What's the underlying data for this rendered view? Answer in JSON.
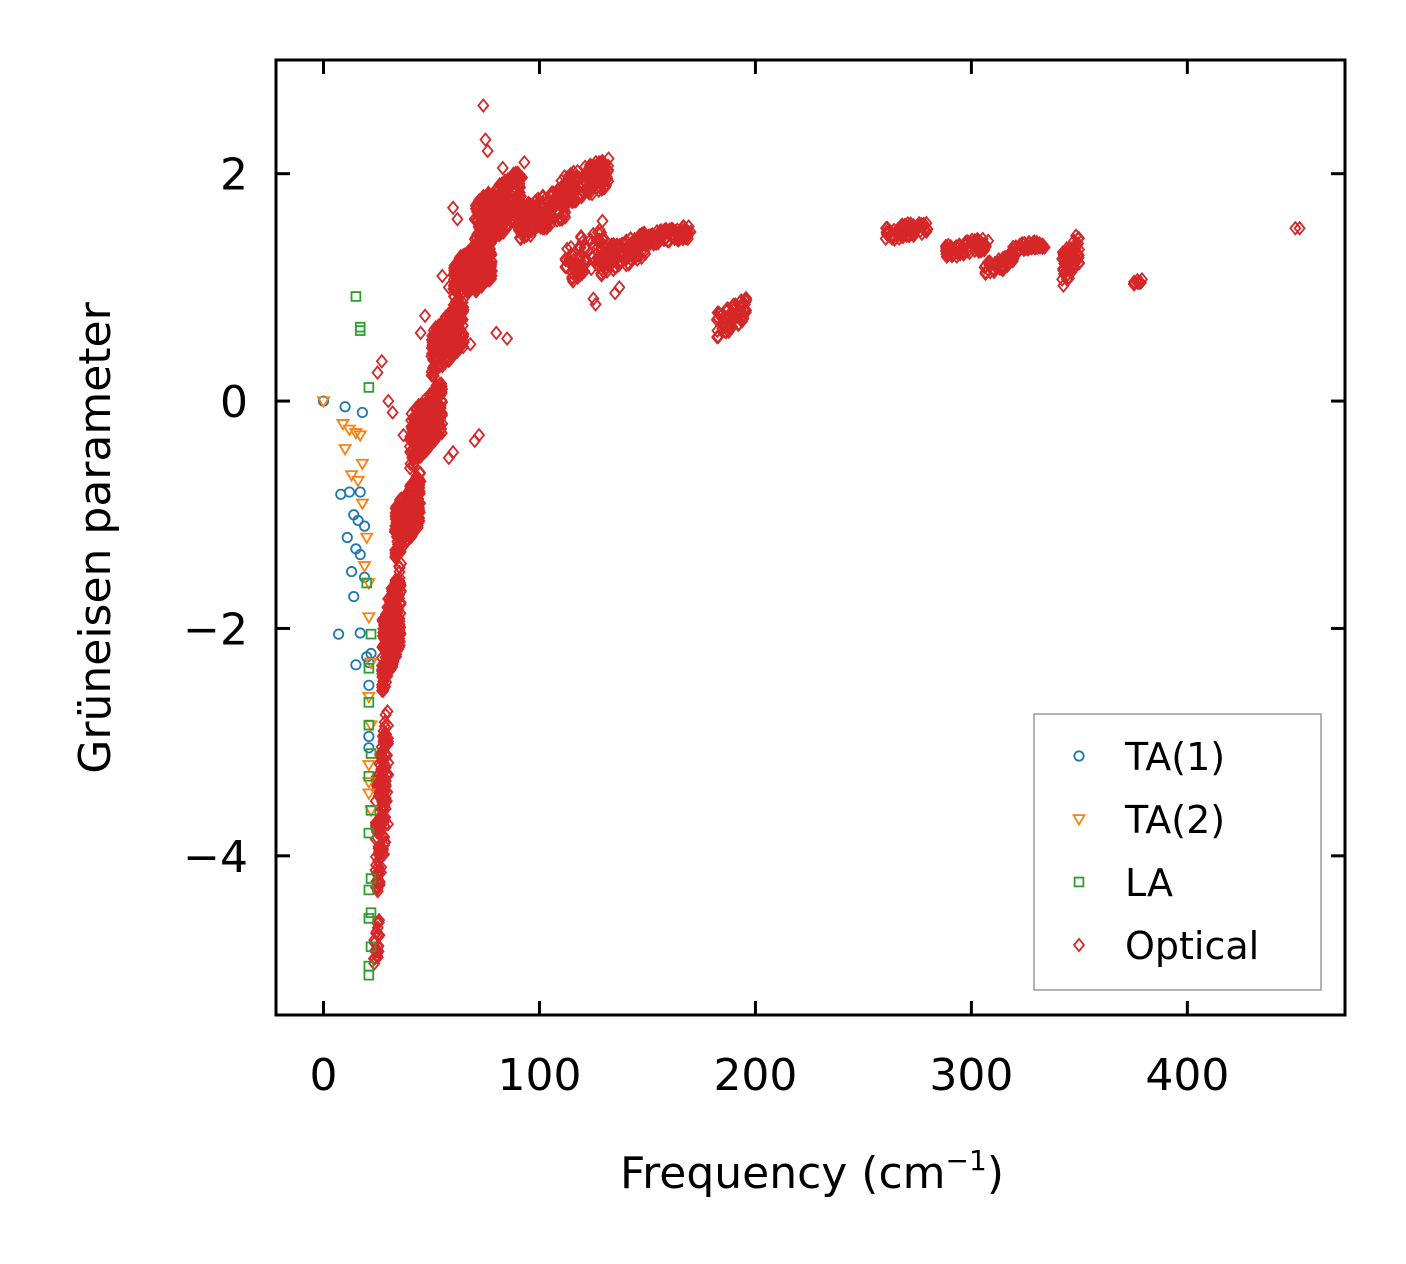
{
  "chart_data": {
    "type": "scatter",
    "title": "",
    "xlabel": "Frequency (cm",
    "xlabel_sup": "−1",
    "xlabel_end": ")",
    "ylabel": "Grüneisen parameter",
    "xlim": [
      -22,
      473
    ],
    "ylim": [
      -5.4,
      3.0
    ],
    "xticks": [
      0,
      100,
      200,
      300,
      400
    ],
    "xtick_labels": [
      "0",
      "100",
      "200",
      "300",
      "400"
    ],
    "yticks": [
      2,
      0,
      -2,
      -4
    ],
    "ytick_labels": [
      "2",
      "0",
      "−2",
      "−4"
    ],
    "grid": false,
    "legend_position": "lower-right",
    "series": [
      {
        "name": "TA(1)",
        "marker": "circle",
        "color": "#1f77b4",
        "points": [
          [
            0,
            0
          ],
          [
            10,
            -0.05
          ],
          [
            18,
            -0.1
          ],
          [
            8,
            -0.82
          ],
          [
            12,
            -0.8
          ],
          [
            17,
            -0.8
          ],
          [
            14,
            -1.0
          ],
          [
            16,
            -1.05
          ],
          [
            19,
            -1.1
          ],
          [
            11,
            -1.2
          ],
          [
            15,
            -1.3
          ],
          [
            17,
            -1.35
          ],
          [
            13,
            -1.5
          ],
          [
            19,
            -1.55
          ],
          [
            14,
            -1.72
          ],
          [
            7,
            -2.05
          ],
          [
            17,
            -2.04
          ],
          [
            15,
            -2.32
          ],
          [
            20,
            -2.25
          ],
          [
            21,
            -2.3
          ],
          [
            22,
            -2.22
          ],
          [
            21,
            -2.5
          ],
          [
            21,
            -2.95
          ],
          [
            21,
            -3.05
          ]
        ]
      },
      {
        "name": "TA(2)",
        "marker": "triangle-down",
        "color": "#ff7f0e",
        "points": [
          [
            0,
            0
          ],
          [
            9,
            -0.2
          ],
          [
            12,
            -0.25
          ],
          [
            15,
            -0.28
          ],
          [
            17,
            -0.3
          ],
          [
            10,
            -0.42
          ],
          [
            18,
            -0.55
          ],
          [
            13,
            -0.65
          ],
          [
            16,
            -0.7
          ],
          [
            18,
            -0.9
          ],
          [
            20,
            -1.2
          ],
          [
            19,
            -1.45
          ],
          [
            21,
            -1.6
          ],
          [
            21,
            -1.9
          ],
          [
            22,
            -2.3
          ],
          [
            21,
            -2.6
          ],
          [
            22,
            -2.85
          ],
          [
            21,
            -3.2
          ],
          [
            21,
            -3.35
          ],
          [
            21,
            -3.45
          ],
          [
            22,
            -3.6
          ]
        ]
      },
      {
        "name": "LA",
        "marker": "square",
        "color": "#2ca02c",
        "points": [
          [
            15,
            0.92
          ],
          [
            17,
            0.65
          ],
          [
            17,
            0.62
          ],
          [
            21,
            0.12
          ],
          [
            20,
            -1.6
          ],
          [
            22,
            -2.05
          ],
          [
            21,
            -2.35
          ],
          [
            21,
            -2.65
          ],
          [
            21,
            -2.85
          ],
          [
            22,
            -3.1
          ],
          [
            21,
            -3.3
          ],
          [
            22,
            -3.6
          ],
          [
            21,
            -3.8
          ],
          [
            22,
            -4.2
          ],
          [
            21,
            -4.3
          ],
          [
            22,
            -4.5
          ],
          [
            21,
            -4.55
          ],
          [
            22,
            -4.8
          ],
          [
            21,
            -4.97
          ],
          [
            21,
            -5.05
          ]
        ]
      },
      {
        "name": "Optical",
        "marker": "diamond",
        "color": "#d62728",
        "clusters": [
          {
            "x_range": [
              23,
              26
            ],
            "y_range": [
              -5.1,
              -4.5
            ],
            "count": 24
          },
          {
            "x_range": [
              24,
              30
            ],
            "y_range": [
              -4.5,
              -2.6
            ],
            "count": 160
          },
          {
            "x_range": [
              27,
              36
            ],
            "y_range": [
              -2.6,
              -1.4
            ],
            "count": 220
          },
          {
            "x_range": [
              33,
              45
            ],
            "y_range": [
              -1.4,
              -0.6
            ],
            "count": 240
          },
          {
            "x_range": [
              40,
              55
            ],
            "y_range": [
              -0.6,
              0.2
            ],
            "count": 260
          },
          {
            "x_range": [
              50,
              65
            ],
            "y_range": [
              0.2,
              0.9
            ],
            "count": 260
          },
          {
            "x_range": [
              60,
              78
            ],
            "y_range": [
              0.8,
              1.5
            ],
            "count": 280
          },
          {
            "x_range": [
              70,
              92
            ],
            "y_range": [
              1.3,
              2.05
            ],
            "count": 280
          },
          {
            "x_range": [
              90,
              112
            ],
            "y_range": [
              1.4,
              1.9
            ],
            "count": 200
          },
          {
            "x_range": [
              110,
              132
            ],
            "y_range": [
              1.7,
              2.15
            ],
            "count": 170
          },
          {
            "x_range": [
              112,
              130
            ],
            "y_range": [
              1.0,
              1.6
            ],
            "count": 70
          },
          {
            "x_range": [
              128,
              150
            ],
            "y_range": [
              1.1,
              1.5
            ],
            "count": 110
          },
          {
            "x_range": [
              145,
              170
            ],
            "y_range": [
              1.35,
              1.55
            ],
            "count": 110
          },
          {
            "x_range": [
              182,
              196
            ],
            "y_range": [
              0.55,
              0.92
            ],
            "count": 70
          },
          {
            "x_range": [
              260,
              280
            ],
            "y_range": [
              1.4,
              1.6
            ],
            "count": 70
          },
          {
            "x_range": [
              288,
              308
            ],
            "y_range": [
              1.25,
              1.45
            ],
            "count": 70
          },
          {
            "x_range": [
              306,
              320
            ],
            "y_range": [
              1.1,
              1.3
            ],
            "count": 50
          },
          {
            "x_range": [
              318,
              334
            ],
            "y_range": [
              1.3,
              1.42
            ],
            "count": 50
          },
          {
            "x_range": [
              342,
              350
            ],
            "y_range": [
              1.0,
              1.5
            ],
            "count": 60
          },
          {
            "x_range": [
              375,
              380
            ],
            "y_range": [
              1.02,
              1.08
            ],
            "count": 8
          }
        ],
        "points": [
          [
            74,
            2.6
          ],
          [
            75,
            2.3
          ],
          [
            76,
            2.2
          ],
          [
            60,
            1.7
          ],
          [
            62,
            1.6
          ],
          [
            55,
            1.1
          ],
          [
            58,
            1.0
          ],
          [
            45,
            0.6
          ],
          [
            47,
            0.75
          ],
          [
            27,
            0.35
          ],
          [
            25,
            0.25
          ],
          [
            30,
            0.0
          ],
          [
            32,
            -0.1
          ],
          [
            37,
            -0.3
          ],
          [
            40,
            -0.4
          ],
          [
            58,
            -0.5
          ],
          [
            60,
            -0.45
          ],
          [
            70,
            -0.35
          ],
          [
            72,
            -0.3
          ],
          [
            68,
            0.5
          ],
          [
            80,
            0.6
          ],
          [
            85,
            0.55
          ],
          [
            125,
            0.9
          ],
          [
            126,
            0.85
          ],
          [
            135,
            0.95
          ],
          [
            137,
            1.0
          ],
          [
            452,
            1.52
          ],
          [
            450,
            1.52
          ],
          [
            83,
            2.05
          ],
          [
            88,
            2.0
          ],
          [
            93,
            2.1
          ]
        ]
      }
    ]
  }
}
